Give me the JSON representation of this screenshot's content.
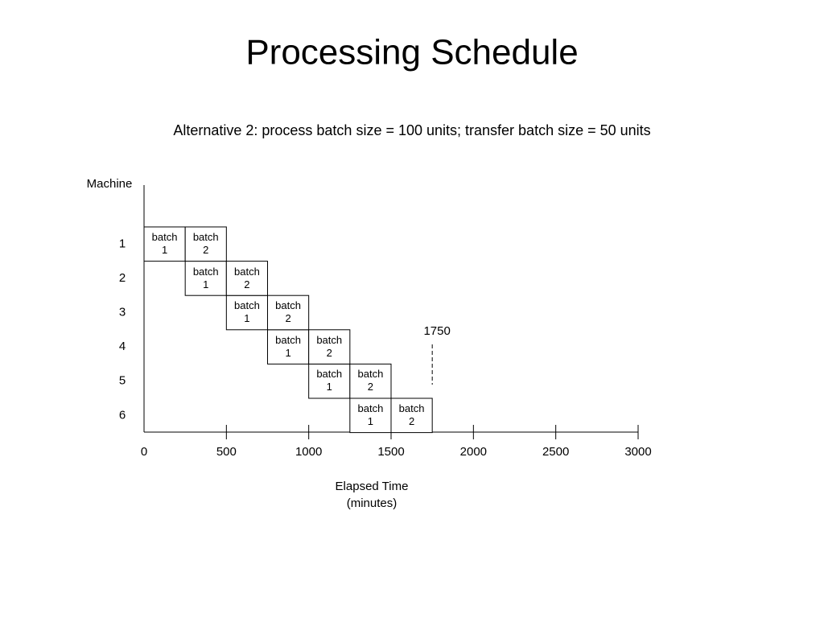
{
  "chart_data": {
    "type": "gantt",
    "title": "Processing Schedule",
    "subtitle": "Alternative 2:  process batch size = 100 units; transfer batch size = 50 units",
    "ylabel": "Machine",
    "xlabel": [
      "Elapsed Time",
      "(minutes)"
    ],
    "categories": [
      "1",
      "2",
      "3",
      "4",
      "5",
      "6"
    ],
    "series": [
      {
        "name": "batch 1",
        "color": "#ffffff",
        "start": [
          0,
          250,
          500,
          750,
          1000,
          1250
        ],
        "end": [
          250,
          500,
          750,
          1000,
          1250,
          1500
        ]
      },
      {
        "name": "batch 2",
        "color": "#ffffff",
        "start": [
          250,
          500,
          750,
          1000,
          1250,
          1500
        ],
        "end": [
          500,
          750,
          1000,
          1250,
          1500,
          1750
        ]
      }
    ],
    "marker": 1750,
    "xlim": [
      0,
      3000
    ],
    "xticks": [
      0,
      500,
      1000,
      1500,
      2000,
      2500,
      3000
    ]
  }
}
